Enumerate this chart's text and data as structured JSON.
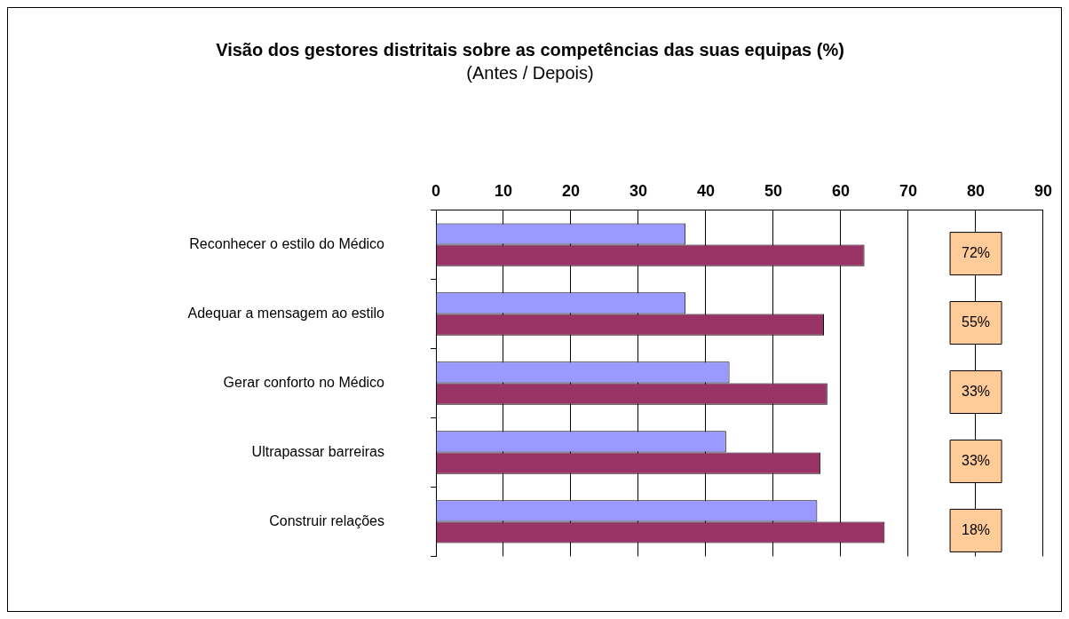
{
  "chart_data": {
    "type": "bar",
    "orientation": "horizontal",
    "title": "Visão dos gestores distritais sobre as competências das suas equipas (%)",
    "subtitle": "(Antes / Depois)",
    "categories": [
      "Reconhecer o estilo do Médico",
      "Adequar a mensagem ao estilo",
      "Gerar conforto no Médico",
      "Ultrapassar barreiras",
      "Construir relações"
    ],
    "series": [
      {
        "color": "#9999ff",
        "values": [
          37,
          37,
          43.5,
          43,
          56.5
        ]
      },
      {
        "color": "#993366",
        "values": [
          63.5,
          57.5,
          58,
          57,
          66.5
        ]
      }
    ],
    "xlim": [
      0,
      90
    ],
    "xticks": [
      0,
      10,
      20,
      30,
      40,
      50,
      60,
      70,
      80,
      90
    ],
    "grid": "x",
    "legend": false,
    "annotations": [
      "72%",
      "55%",
      "33%",
      "33%",
      "18%"
    ]
  }
}
